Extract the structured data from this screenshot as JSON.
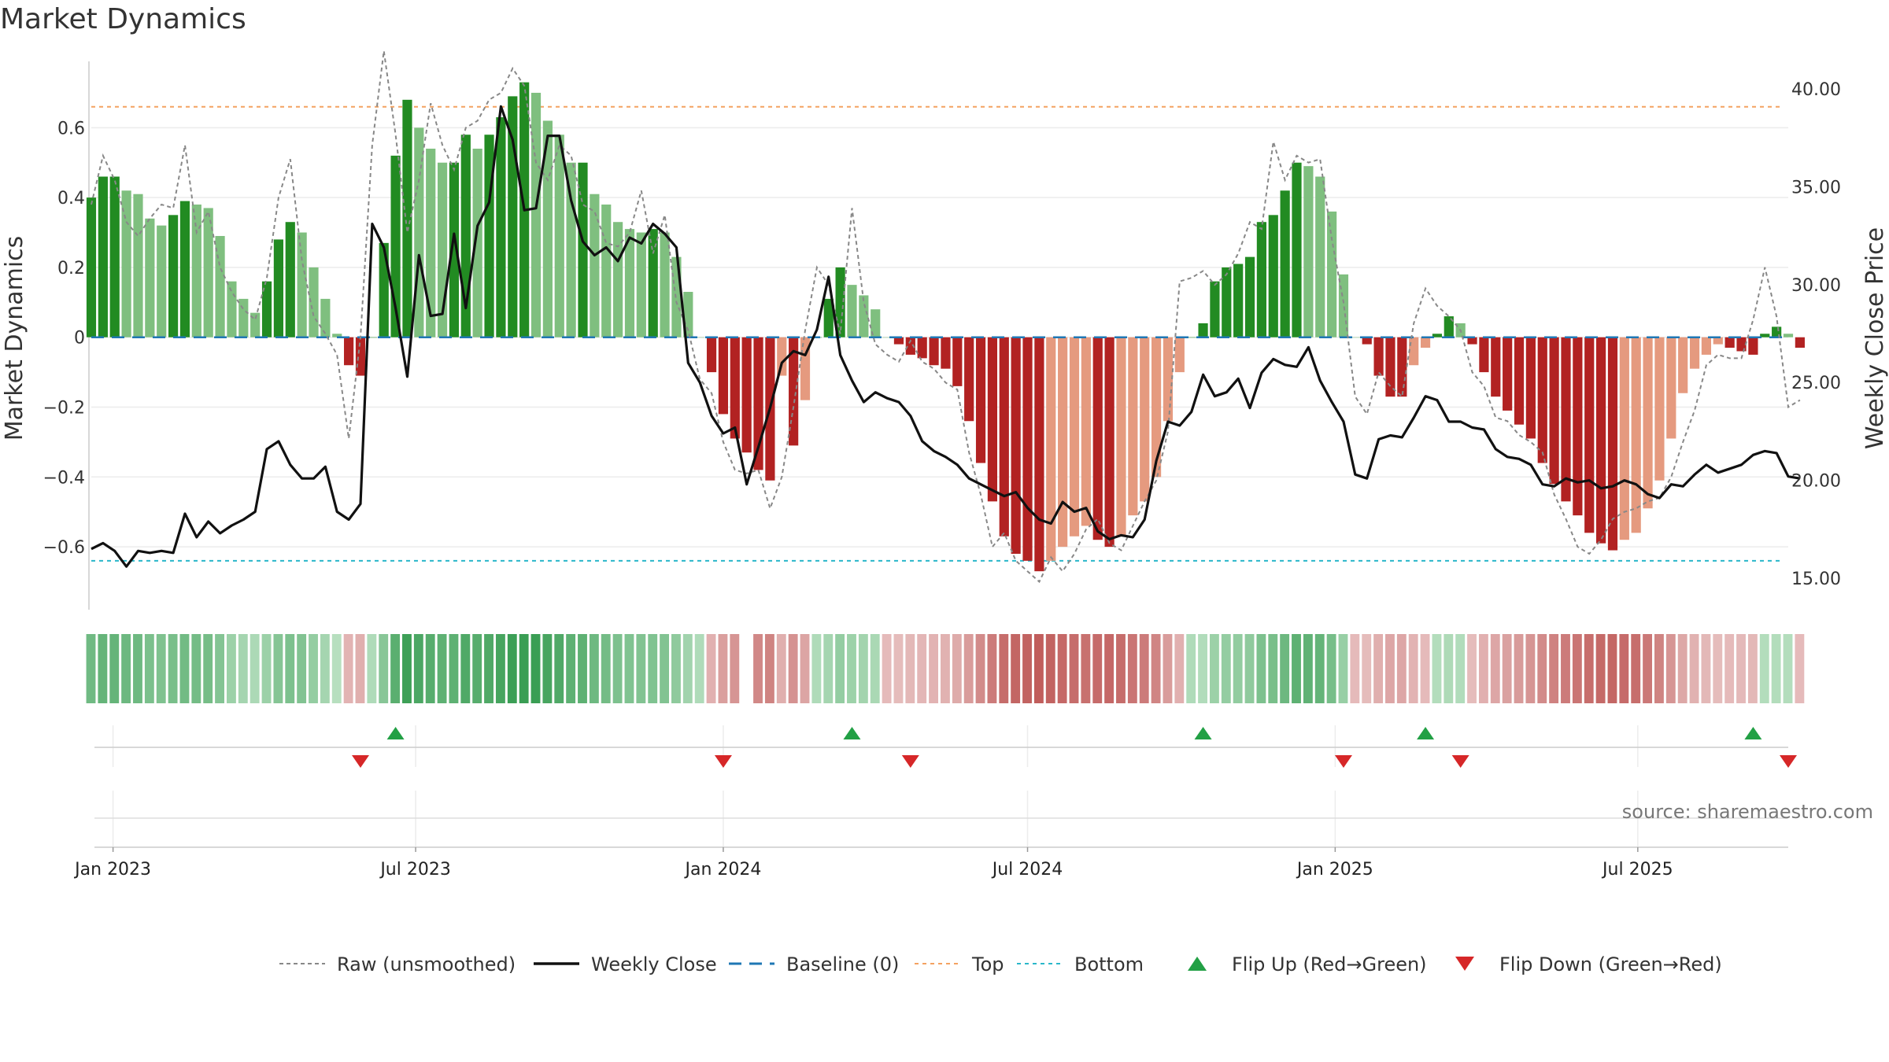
{
  "title": "Market Dynamics",
  "source_note": "source: sharemaestro.com",
  "colors": {
    "strong_green": "#228b22",
    "light_green": "#7fbf7f",
    "strong_red": "#b22222",
    "light_red": "#e59a7f",
    "close_line": "#111111",
    "raw_line": "#888888",
    "baseline": "#1f77b4",
    "top_line": "#f4a261",
    "bottom_line": "#2ab7ca",
    "flip_up": "#22a045",
    "flip_down": "#d62728"
  },
  "chart_data": {
    "type": "bar",
    "title": "Market Dynamics",
    "ylabel": "Market Dynamics",
    "y2label": "Weekly Close Price",
    "ylim": [
      -0.78,
      0.79
    ],
    "y2lim": [
      13.4,
      41.4
    ],
    "yticks": [
      0.6,
      0.4,
      0.2,
      0,
      -0.2,
      -0.4,
      -0.6
    ],
    "yticklabels": [
      "0.6",
      "0.4",
      "0.2",
      "0",
      "−0.2",
      "−0.4",
      "−0.6"
    ],
    "y2ticks": [
      40,
      35,
      30,
      25,
      20,
      15
    ],
    "y2ticklabels": [
      "40.00",
      "35.00",
      "30.00",
      "25.00",
      "20.00",
      "15.00"
    ],
    "x_start": "2022-12-19",
    "x_end": "2025-09-29",
    "xticks": [
      "2023-01-01",
      "2023-07-01",
      "2024-01-01",
      "2024-07-01",
      "2025-01-01",
      "2025-07-01"
    ],
    "xticklabels": [
      "Jan 2023",
      "Jul 2023",
      "Jan 2024",
      "Jul 2024",
      "Jan 2025",
      "Jul 2025"
    ],
    "top_level": 0.66,
    "bottom_level": -0.64,
    "baseline_level": 0,
    "bars": {
      "start": "2022-12-19",
      "step_days": 7,
      "values": [
        0.4,
        0.46,
        0.46,
        0.42,
        0.41,
        0.34,
        0.32,
        0.35,
        0.39,
        0.38,
        0.37,
        0.29,
        0.16,
        0.11,
        0.07,
        0.16,
        0.28,
        0.33,
        0.3,
        0.2,
        0.11,
        0.01,
        -0.08,
        -0.11,
        0.0,
        0.27,
        0.52,
        0.68,
        0.6,
        0.54,
        0.5,
        0.5,
        0.58,
        0.54,
        0.58,
        0.63,
        0.69,
        0.73,
        0.7,
        0.62,
        0.58,
        0.5,
        0.5,
        0.41,
        0.38,
        0.33,
        0.31,
        0.3,
        0.31,
        0.3,
        0.23,
        0.13,
        0.0,
        -0.1,
        -0.22,
        -0.29,
        -0.33,
        -0.38,
        -0.41,
        -0.11,
        -0.31,
        -0.18,
        0.0,
        0.11,
        0.2,
        0.15,
        0.12,
        0.08,
        0.0,
        -0.02,
        -0.05,
        -0.06,
        -0.08,
        -0.09,
        -0.14,
        -0.24,
        -0.36,
        -0.47,
        -0.57,
        -0.62,
        -0.64,
        -0.67,
        -0.64,
        -0.6,
        -0.57,
        -0.54,
        -0.58,
        -0.6,
        -0.57,
        -0.51,
        -0.47,
        -0.4,
        -0.24,
        -0.1,
        0.0,
        0.04,
        0.16,
        0.2,
        0.21,
        0.23,
        0.33,
        0.35,
        0.42,
        0.5,
        0.49,
        0.46,
        0.36,
        0.18,
        0.0,
        -0.02,
        -0.11,
        -0.17,
        -0.17,
        -0.08,
        -0.03,
        0.01,
        0.06,
        0.04,
        -0.02,
        -0.1,
        -0.17,
        -0.21,
        -0.25,
        -0.29,
        -0.36,
        -0.42,
        -0.47,
        -0.51,
        -0.56,
        -0.59,
        -0.61,
        -0.58,
        -0.56,
        -0.49,
        -0.41,
        -0.29,
        -0.16,
        -0.09,
        -0.05,
        -0.02,
        -0.03,
        -0.04,
        -0.05,
        0.01,
        0.03,
        0.01,
        -0.03
      ]
    },
    "series": [
      {
        "name": "Raw (unsmoothed)",
        "axis": "left",
        "start": "2022-12-19",
        "step_days": 7,
        "values": [
          0.38,
          0.52,
          0.45,
          0.33,
          0.29,
          0.34,
          0.38,
          0.37,
          0.55,
          0.3,
          0.36,
          0.2,
          0.13,
          0.08,
          0.05,
          0.17,
          0.4,
          0.51,
          0.22,
          0.06,
          0.01,
          -0.05,
          -0.29,
          0.0,
          0.55,
          0.82,
          0.58,
          0.3,
          0.45,
          0.67,
          0.55,
          0.48,
          0.6,
          0.62,
          0.68,
          0.7,
          0.77,
          0.72,
          0.5,
          0.45,
          0.55,
          0.52,
          0.38,
          0.36,
          0.27,
          0.26,
          0.3,
          0.42,
          0.24,
          0.35,
          0.1,
          0.02,
          -0.12,
          -0.16,
          -0.3,
          -0.38,
          -0.39,
          -0.38,
          -0.49,
          -0.4,
          -0.2,
          0.02,
          0.2,
          0.15,
          0.01,
          0.37,
          0.1,
          -0.02,
          -0.05,
          -0.07,
          -0.01,
          -0.07,
          -0.09,
          -0.13,
          -0.15,
          -0.33,
          -0.45,
          -0.6,
          -0.56,
          -0.64,
          -0.67,
          -0.7,
          -0.63,
          -0.67,
          -0.62,
          -0.55,
          -0.52,
          -0.59,
          -0.61,
          -0.54,
          -0.47,
          -0.41,
          -0.27,
          0.16,
          0.17,
          0.19,
          0.15,
          0.18,
          0.24,
          0.33,
          0.31,
          0.56,
          0.45,
          0.52,
          0.5,
          0.51,
          0.28,
          0.1,
          -0.17,
          -0.22,
          -0.1,
          -0.14,
          -0.17,
          0.04,
          0.14,
          0.09,
          0.06,
          0.02,
          -0.1,
          -0.14,
          -0.23,
          -0.24,
          -0.28,
          -0.3,
          -0.33,
          -0.45,
          -0.52,
          -0.6,
          -0.62,
          -0.58,
          -0.52,
          -0.5,
          -0.49,
          -0.47,
          -0.46,
          -0.4,
          -0.3,
          -0.21,
          -0.08,
          -0.05,
          -0.06,
          -0.06,
          0.05,
          0.2,
          0.06,
          -0.2,
          -0.18
        ]
      },
      {
        "name": "Weekly Close",
        "axis": "right",
        "start": "2022-12-19",
        "step_days": 7,
        "values": [
          16.5,
          16.8,
          16.4,
          15.6,
          16.4,
          16.3,
          16.4,
          16.3,
          18.3,
          17.1,
          17.9,
          17.3,
          17.7,
          18.0,
          18.4,
          21.6,
          22.0,
          20.8,
          20.1,
          20.1,
          20.7,
          18.4,
          18.0,
          18.8,
          33.1,
          31.9,
          28.8,
          25.3,
          31.5,
          28.4,
          28.5,
          32.6,
          28.8,
          33.0,
          34.2,
          39.1,
          37.4,
          33.8,
          33.9,
          37.6,
          37.6,
          34.3,
          32.2,
          31.5,
          31.9,
          31.2,
          32.4,
          32.1,
          33.1,
          32.6,
          31.9,
          26.0,
          25.0,
          23.3,
          22.4,
          22.7,
          19.8,
          21.7,
          23.7,
          26.0,
          26.6,
          26.4,
          27.7,
          30.4,
          26.4,
          25.1,
          24.0,
          24.5,
          24.2,
          24.0,
          23.3,
          22.0,
          21.5,
          21.2,
          20.8,
          20.1,
          19.8,
          19.5,
          19.2,
          19.4,
          18.6,
          18.0,
          17.8,
          18.9,
          18.4,
          18.6,
          17.4,
          17.0,
          17.2,
          17.1,
          18.0,
          21.0,
          23.0,
          22.8,
          23.5,
          25.4,
          24.3,
          24.5,
          25.2,
          23.7,
          25.5,
          26.2,
          25.9,
          25.8,
          26.8,
          25.1,
          24.0,
          23.0,
          20.3,
          20.1,
          22.1,
          22.3,
          22.2,
          23.2,
          24.3,
          24.1,
          23.0,
          23.0,
          22.7,
          22.6,
          21.6,
          21.2,
          21.1,
          20.8,
          19.8,
          19.7,
          20.1,
          19.9,
          20.0,
          19.6,
          19.7,
          20.0,
          19.8,
          19.3,
          19.1,
          19.8,
          19.7,
          20.3,
          20.8,
          20.4,
          20.6,
          20.8,
          21.3,
          21.5,
          21.4,
          20.2,
          20.1
        ]
      }
    ],
    "band": {
      "start": "2022-12-19",
      "step_days": 7,
      "gap_weeks": [
        56
      ],
      "values": [
        0.4,
        0.46,
        0.46,
        0.42,
        0.41,
        0.34,
        0.32,
        0.35,
        0.39,
        0.38,
        0.37,
        0.29,
        0.16,
        0.11,
        0.07,
        0.16,
        0.28,
        0.33,
        0.3,
        0.2,
        0.11,
        0.01,
        -0.08,
        -0.11,
        0.05,
        0.27,
        0.52,
        0.68,
        0.6,
        0.54,
        0.5,
        0.5,
        0.58,
        0.54,
        0.58,
        0.63,
        0.69,
        0.73,
        0.7,
        0.62,
        0.58,
        0.5,
        0.5,
        0.41,
        0.38,
        0.33,
        0.31,
        0.3,
        0.31,
        0.3,
        0.23,
        0.13,
        0.05,
        -0.1,
        -0.22,
        -0.29,
        -0.33,
        -0.38,
        -0.41,
        -0.11,
        -0.31,
        -0.18,
        0.05,
        0.11,
        0.2,
        0.15,
        0.12,
        0.08,
        -0.03,
        -0.02,
        -0.05,
        -0.06,
        -0.08,
        -0.09,
        -0.14,
        -0.24,
        -0.36,
        -0.47,
        -0.57,
        -0.62,
        -0.64,
        -0.67,
        -0.64,
        -0.6,
        -0.57,
        -0.54,
        -0.58,
        -0.6,
        -0.57,
        -0.51,
        -0.47,
        -0.4,
        -0.24,
        -0.1,
        0.05,
        0.04,
        0.16,
        0.2,
        0.21,
        0.23,
        0.33,
        0.35,
        0.42,
        0.5,
        0.49,
        0.46,
        0.36,
        0.18,
        -0.03,
        -0.02,
        -0.11,
        -0.17,
        -0.17,
        -0.08,
        -0.03,
        0.03,
        0.06,
        0.04,
        -0.02,
        -0.1,
        -0.17,
        -0.21,
        -0.25,
        -0.29,
        -0.36,
        -0.42,
        -0.47,
        -0.51,
        -0.56,
        -0.59,
        -0.61,
        -0.58,
        -0.56,
        -0.49,
        -0.41,
        -0.29,
        -0.16,
        -0.09,
        -0.05,
        -0.02,
        -0.03,
        -0.04,
        -0.05,
        0.03,
        0.03,
        0.03,
        -0.03
      ]
    },
    "flip_up": [
      "2023-06-19",
      "2024-03-18",
      "2024-10-14",
      "2025-02-24",
      "2025-09-08"
    ],
    "flip_down": [
      "2023-05-29",
      "2024-01-01",
      "2024-04-22",
      "2025-01-06",
      "2025-03-17",
      "2025-09-29"
    ],
    "legend": [
      {
        "label": "Raw (unsmoothed)",
        "kind": "dashed-gray"
      },
      {
        "label": "Weekly Close",
        "kind": "solid-black"
      },
      {
        "label": "Baseline (0)",
        "kind": "dashed-blue"
      },
      {
        "label": "Top",
        "kind": "dotted-orange"
      },
      {
        "label": "Bottom",
        "kind": "dotted-cyan"
      },
      {
        "label": "Flip Up (Red→Green)",
        "kind": "triangle-up"
      },
      {
        "label": "Flip Down (Green→Red)",
        "kind": "triangle-down"
      }
    ],
    "legend_position": "bottom-center",
    "grid": true
  }
}
